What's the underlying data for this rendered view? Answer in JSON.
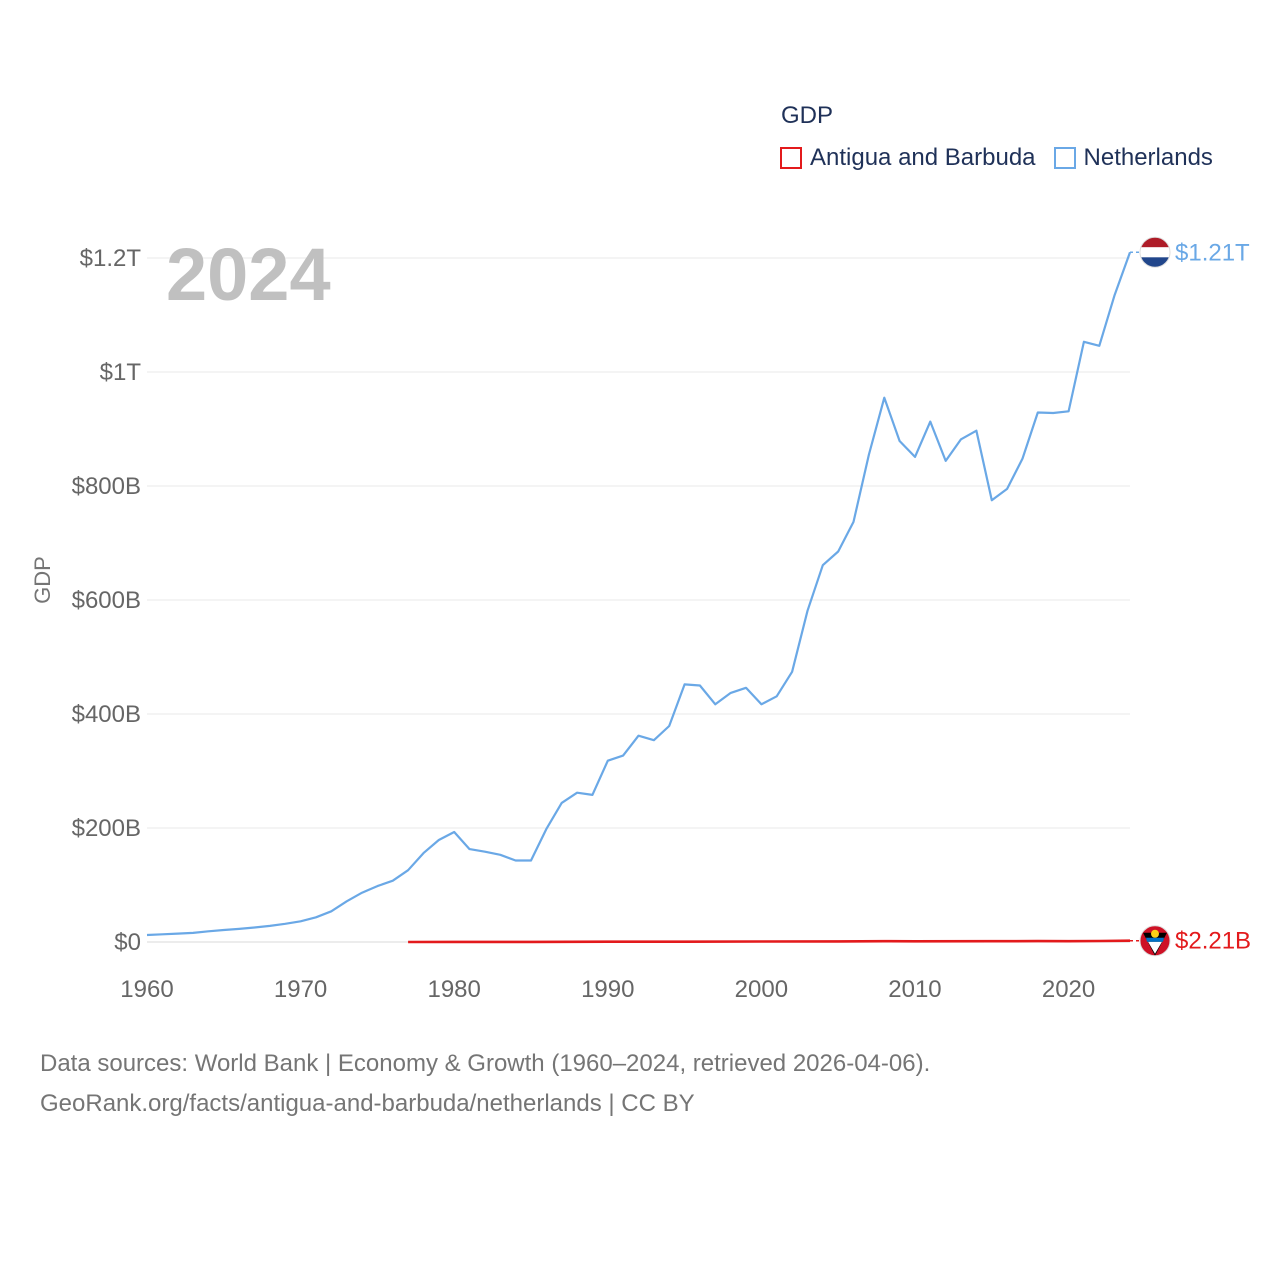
{
  "legend": {
    "title": "GDP",
    "items": [
      {
        "label": "Antigua and Barbuda",
        "color": "#e31a1c"
      },
      {
        "label": "Netherlands",
        "color": "#6aa8e6"
      }
    ]
  },
  "footer": {
    "line1": "Data sources: World Bank | Economy & Growth (1960–2024, retrieved 2026-04-06).",
    "line2": "GeoRank.org/facts/antigua-and-barbuda/netherlands | CC BY"
  },
  "chart_data": {
    "type": "line",
    "title": "GDP",
    "year_label": "2024",
    "ylabel": "GDP",
    "xlabel": "",
    "xlim": [
      1960,
      2024
    ],
    "ylim": [
      0,
      1200
    ],
    "y_unit": "billions USD",
    "x_ticks": [
      1960,
      1970,
      1980,
      1990,
      2000,
      2010,
      2020
    ],
    "x_tick_labels": [
      "1960",
      "1970",
      "1980",
      "1990",
      "2000",
      "2010",
      "2020"
    ],
    "y_ticks": [
      0,
      200,
      400,
      600,
      800,
      1000,
      1200
    ],
    "y_tick_labels": [
      "$0",
      "$200B",
      "$400B",
      "$600B",
      "$800B",
      "$1T",
      "$1.2T"
    ],
    "grid": true,
    "series": [
      {
        "name": "Netherlands",
        "color": "#6aa8e6",
        "end_label": "$1.21T",
        "x": [
          1960,
          1961,
          1962,
          1963,
          1964,
          1965,
          1966,
          1967,
          1968,
          1969,
          1970,
          1971,
          1972,
          1973,
          1974,
          1975,
          1976,
          1977,
          1978,
          1979,
          1980,
          1981,
          1982,
          1983,
          1984,
          1985,
          1986,
          1987,
          1988,
          1989,
          1990,
          1991,
          1992,
          1993,
          1994,
          1995,
          1996,
          1997,
          1998,
          1999,
          2000,
          2001,
          2002,
          2003,
          2004,
          2005,
          2006,
          2007,
          2008,
          2009,
          2010,
          2011,
          2012,
          2013,
          2014,
          2015,
          2016,
          2017,
          2018,
          2019,
          2020,
          2021,
          2022,
          2023,
          2024
        ],
        "values": [
          12.3,
          13.5,
          14.8,
          16.0,
          18.8,
          21.0,
          23.0,
          25.4,
          28.2,
          31.9,
          36.4,
          43.4,
          53.9,
          71.4,
          86.5,
          98.0,
          107.5,
          126.0,
          156.0,
          179.0,
          193.0,
          163.0,
          158.5,
          153.0,
          143.0,
          143.0,
          198.0,
          244.0,
          262.0,
          258.0,
          318.0,
          327.0,
          362.0,
          354.0,
          379.0,
          452.0,
          450.0,
          417.0,
          437.0,
          446.0,
          417.0,
          431.0,
          474.0,
          581.0,
          661.0,
          685.0,
          737.0,
          855.0,
          955.0,
          879.0,
          851.0,
          913.0,
          844.0,
          882.0,
          897.0,
          775.0,
          795.0,
          848.0,
          929.0,
          928.0,
          931.0,
          1053.0,
          1046.0,
          1135.0,
          1210.0
        ]
      },
      {
        "name": "Antigua and Barbuda",
        "color": "#e31a1c",
        "end_label": "$2.21B",
        "x": [
          1977,
          1980,
          1985,
          1990,
          1995,
          2000,
          2005,
          2008,
          2010,
          2015,
          2018,
          2020,
          2022,
          2024
        ],
        "values": [
          0.08,
          0.14,
          0.24,
          0.46,
          0.58,
          0.83,
          1.03,
          1.34,
          1.15,
          1.34,
          1.6,
          1.4,
          1.69,
          2.21
        ]
      }
    ]
  }
}
